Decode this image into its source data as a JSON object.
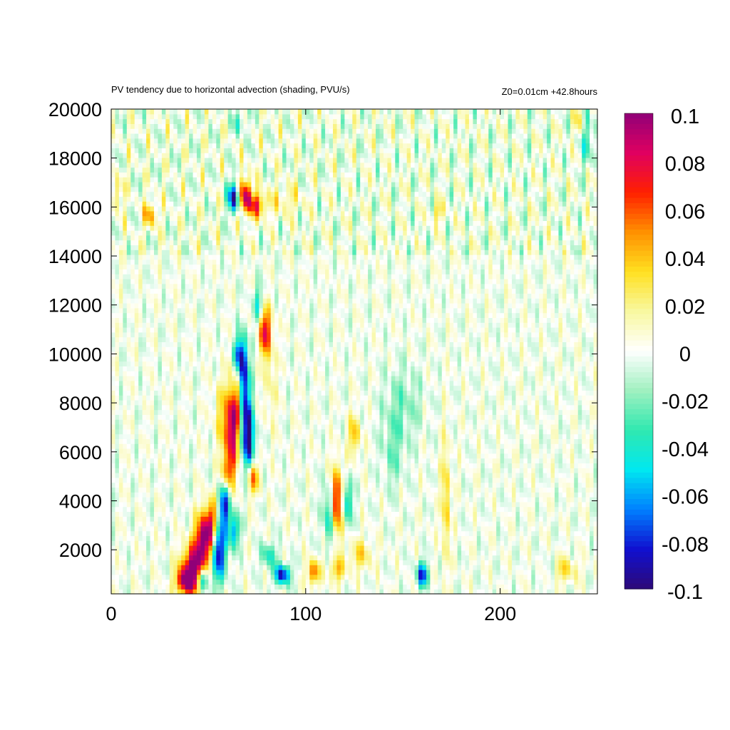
{
  "chart_data": {
    "type": "heatmap",
    "title": "PV tendency due to horizontal advection (shading, PVU/s)",
    "subtitle": "Z0=0.01cm   +42.8hours",
    "xlabel": "",
    "ylabel": "",
    "xlim": [
      0,
      250
    ],
    "ylim": [
      200,
      20000
    ],
    "x_ticks": [
      "0",
      "100",
      "200"
    ],
    "x_tick_values": [
      0,
      100,
      200
    ],
    "y_ticks": [
      "2000",
      "4000",
      "6000",
      "8000",
      "10000",
      "12000",
      "14000",
      "16000",
      "18000",
      "20000"
    ],
    "y_tick_values": [
      2000,
      4000,
      6000,
      8000,
      10000,
      12000,
      14000,
      16000,
      18000,
      20000
    ],
    "colorbar": {
      "min": -0.1,
      "max": 0.1,
      "tick_labels": [
        "0.1",
        "0.08",
        "0.06",
        "0.04",
        "0.02",
        "0",
        "-0.02",
        "-0.04",
        "-0.06",
        "-0.08",
        "-0.1"
      ],
      "tick_values": [
        0.1,
        0.08,
        0.06,
        0.04,
        0.02,
        0,
        -0.02,
        -0.04,
        -0.06,
        -0.08,
        -0.1
      ],
      "palette": [
        "#2d0a78",
        "#1010d0",
        "#0080ff",
        "#00e8f0",
        "#30e8b0",
        "#a0f0c0",
        "#ffffff",
        "#f8f8a0",
        "#ffe020",
        "#ff9000",
        "#ff2000",
        "#e00060",
        "#900078"
      ]
    },
    "grid": false,
    "features": [
      {
        "x": 42,
        "y": 1200,
        "v": 0.1,
        "wx": 6,
        "wy": 900
      },
      {
        "x": 48,
        "y": 2400,
        "v": 0.1,
        "wx": 5,
        "wy": 1000
      },
      {
        "x": 38,
        "y": 700,
        "v": 0.07,
        "wx": 5,
        "wy": 500
      },
      {
        "x": 52,
        "y": 3200,
        "v": 0.06,
        "wx": 4,
        "wy": 900
      },
      {
        "x": 55,
        "y": 2000,
        "v": -0.1,
        "wx": 4,
        "wy": 1200
      },
      {
        "x": 58,
        "y": 3800,
        "v": -0.08,
        "wx": 3,
        "wy": 900
      },
      {
        "x": 47,
        "y": 800,
        "v": -0.07,
        "wx": 3,
        "wy": 500
      },
      {
        "x": 63,
        "y": 2800,
        "v": -0.06,
        "wx": 3,
        "wy": 700
      },
      {
        "x": 62,
        "y": 6800,
        "v": 0.09,
        "wx": 3,
        "wy": 1500
      },
      {
        "x": 65,
        "y": 8000,
        "v": 0.07,
        "wx": 3,
        "wy": 1200
      },
      {
        "x": 60,
        "y": 5200,
        "v": 0.05,
        "wx": 3,
        "wy": 700
      },
      {
        "x": 68,
        "y": 8500,
        "v": -0.1,
        "wx": 3,
        "wy": 1800
      },
      {
        "x": 71,
        "y": 6500,
        "v": -0.09,
        "wx": 3,
        "wy": 1300
      },
      {
        "x": 66,
        "y": 10000,
        "v": -0.06,
        "wx": 3,
        "wy": 700
      },
      {
        "x": 73,
        "y": 5000,
        "v": 0.06,
        "wx": 3,
        "wy": 700
      },
      {
        "x": 57,
        "y": 7500,
        "v": 0.03,
        "wx": 4,
        "wy": 1500
      },
      {
        "x": 79,
        "y": 11000,
        "v": 0.08,
        "wx": 3,
        "wy": 1000
      },
      {
        "x": 76,
        "y": 12000,
        "v": -0.04,
        "wx": 3,
        "wy": 800
      },
      {
        "x": 82,
        "y": 9000,
        "v": 0.02,
        "wx": 3,
        "wy": 2000
      },
      {
        "x": 63,
        "y": 16400,
        "v": -0.09,
        "wx": 3,
        "wy": 600
      },
      {
        "x": 69,
        "y": 16500,
        "v": 0.09,
        "wx": 3,
        "wy": 700
      },
      {
        "x": 75,
        "y": 16100,
        "v": 0.06,
        "wx": 5,
        "wy": 500
      },
      {
        "x": 20,
        "y": 15700,
        "v": 0.05,
        "wx": 3,
        "wy": 500
      },
      {
        "x": 3,
        "y": 16600,
        "v": 0.03,
        "wx": 3,
        "wy": 700
      },
      {
        "x": 90,
        "y": 16300,
        "v": 0.02,
        "wx": 8,
        "wy": 600
      },
      {
        "x": 168,
        "y": 15800,
        "v": 0.03,
        "wx": 3,
        "wy": 400
      },
      {
        "x": 88,
        "y": 1000,
        "v": -0.09,
        "wx": 4,
        "wy": 400
      },
      {
        "x": 81,
        "y": 1800,
        "v": -0.04,
        "wx": 4,
        "wy": 500
      },
      {
        "x": 104,
        "y": 1100,
        "v": 0.06,
        "wx": 3,
        "wy": 500
      },
      {
        "x": 116,
        "y": 4000,
        "v": 0.09,
        "wx": 3,
        "wy": 1300
      },
      {
        "x": 112,
        "y": 3500,
        "v": -0.05,
        "wx": 3,
        "wy": 1200
      },
      {
        "x": 121,
        "y": 4000,
        "v": -0.05,
        "wx": 3,
        "wy": 900
      },
      {
        "x": 116,
        "y": 1200,
        "v": 0.04,
        "wx": 4,
        "wy": 500
      },
      {
        "x": 128,
        "y": 1800,
        "v": 0.03,
        "wx": 6,
        "wy": 600
      },
      {
        "x": 125,
        "y": 6700,
        "v": 0.04,
        "wx": 3,
        "wy": 800
      },
      {
        "x": 160,
        "y": 1000,
        "v": -0.08,
        "wx": 3,
        "wy": 500
      },
      {
        "x": 172,
        "y": 4000,
        "v": 0.04,
        "wx": 2,
        "wy": 2500
      },
      {
        "x": 150,
        "y": 8000,
        "v": -0.02,
        "wx": 10,
        "wy": 1500
      },
      {
        "x": 145,
        "y": 6000,
        "v": -0.02,
        "wx": 6,
        "wy": 1500
      },
      {
        "x": 232,
        "y": 1200,
        "v": 0.03,
        "wx": 8,
        "wy": 500
      },
      {
        "x": 225,
        "y": 1200,
        "v": -0.02,
        "wx": 4,
        "wy": 500
      },
      {
        "x": 245,
        "y": 18700,
        "v": -0.03,
        "wx": 4,
        "wy": 1000
      },
      {
        "x": 240,
        "y": 19500,
        "v": 0.02,
        "wx": 3,
        "wy": 600
      },
      {
        "x": 66,
        "y": 19500,
        "v": -0.03,
        "wx": 3,
        "wy": 500
      }
    ],
    "texture": [
      {
        "y_from": 14000,
        "y_to": 20000,
        "amplitude": 0.02
      },
      {
        "y_from": 200,
        "y_to": 14000,
        "amplitude": 0.012
      }
    ]
  }
}
